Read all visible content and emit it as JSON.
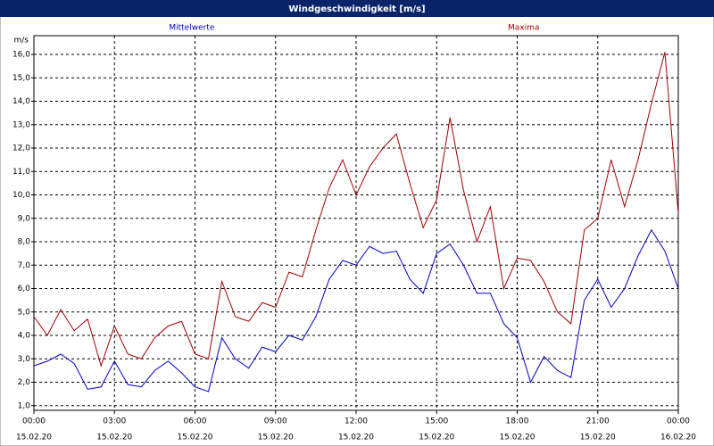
{
  "chart_data": {
    "type": "line",
    "title": "Windgeschwindigkeit [m/s]",
    "y_label": "m/s",
    "x": [
      0,
      0.5,
      1,
      1.5,
      2,
      2.5,
      3,
      3.5,
      4,
      4.5,
      5,
      5.5,
      6,
      6.5,
      7,
      7.5,
      8,
      8.5,
      9,
      9.5,
      10,
      10.5,
      11,
      11.5,
      12,
      12.5,
      13,
      13.5,
      14,
      14.5,
      15,
      15.5,
      16,
      16.5,
      17,
      17.5,
      18,
      18.5,
      19,
      19.5,
      20,
      20.5,
      21,
      21.5,
      22,
      22.5,
      23,
      23.5,
      24
    ],
    "series": [
      {
        "name": "Mittelwerte",
        "color": "#0000c0",
        "values": [
          2.7,
          2.9,
          3.2,
          2.8,
          1.7,
          1.8,
          2.9,
          1.9,
          1.8,
          2.5,
          2.9,
          2.4,
          1.8,
          1.6,
          3.9,
          3.0,
          2.6,
          3.5,
          3.3,
          4.0,
          3.8,
          4.8,
          6.4,
          7.2,
          7.0,
          7.8,
          7.5,
          7.6,
          6.4,
          5.8,
          7.5,
          7.9,
          7.0,
          5.8,
          5.8,
          4.5,
          3.9,
          2.0,
          3.1,
          2.5,
          2.2,
          5.5,
          6.4,
          5.2,
          6.0,
          7.4,
          8.5,
          7.6,
          6.0
        ]
      },
      {
        "name": "Maxima",
        "color": "#a00000",
        "values": [
          4.8,
          4.0,
          5.1,
          4.2,
          4.7,
          2.7,
          4.4,
          3.2,
          3.0,
          3.9,
          4.4,
          4.6,
          3.2,
          3.0,
          6.3,
          4.8,
          4.6,
          5.4,
          5.2,
          6.7,
          6.5,
          8.5,
          10.3,
          11.5,
          10.0,
          11.2,
          12.0,
          12.6,
          10.5,
          8.6,
          9.8,
          13.3,
          10.2,
          8.0,
          9.5,
          6.0,
          7.3,
          7.2,
          6.3,
          5.0,
          4.5,
          8.5,
          9.0,
          11.5,
          9.5,
          11.5,
          13.9,
          16.1,
          9.2
        ]
      }
    ],
    "xlim": [
      0,
      24
    ],
    "xticks": [
      {
        "value": 0,
        "label": "00:00"
      },
      {
        "value": 3,
        "label": "03:00"
      },
      {
        "value": 6,
        "label": "06:00"
      },
      {
        "value": 9,
        "label": "09:00"
      },
      {
        "value": 12,
        "label": "12:00"
      },
      {
        "value": 15,
        "label": "15:00"
      },
      {
        "value": 18,
        "label": "18:00"
      },
      {
        "value": 21,
        "label": "21:00"
      },
      {
        "value": 24,
        "label": "00:00"
      }
    ],
    "xtick_dates": [
      "15.02.20",
      "15.02.20",
      "15.02.20",
      "15.02.20",
      "15.02.20",
      "15.02.20",
      "15.02.20",
      "15.02.20",
      "16.02.20"
    ],
    "ylim": [
      0.8,
      16.8
    ],
    "yticks": [
      {
        "value": 1,
        "label": "1,0"
      },
      {
        "value": 2,
        "label": "2,0"
      },
      {
        "value": 3,
        "label": "3,0"
      },
      {
        "value": 4,
        "label": "4,0"
      },
      {
        "value": 5,
        "label": "5,0"
      },
      {
        "value": 6,
        "label": "6,0"
      },
      {
        "value": 7,
        "label": "7,0"
      },
      {
        "value": 8,
        "label": "8,0"
      },
      {
        "value": 9,
        "label": "9,0"
      },
      {
        "value": 10,
        "label": "10,0"
      },
      {
        "value": 11,
        "label": "11,0"
      },
      {
        "value": 12,
        "label": "12,0"
      },
      {
        "value": 13,
        "label": "13,0"
      },
      {
        "value": 14,
        "label": "14,0"
      },
      {
        "value": 15,
        "label": "15,0"
      },
      {
        "value": 16,
        "label": "16,0"
      }
    ],
    "grid": true
  }
}
